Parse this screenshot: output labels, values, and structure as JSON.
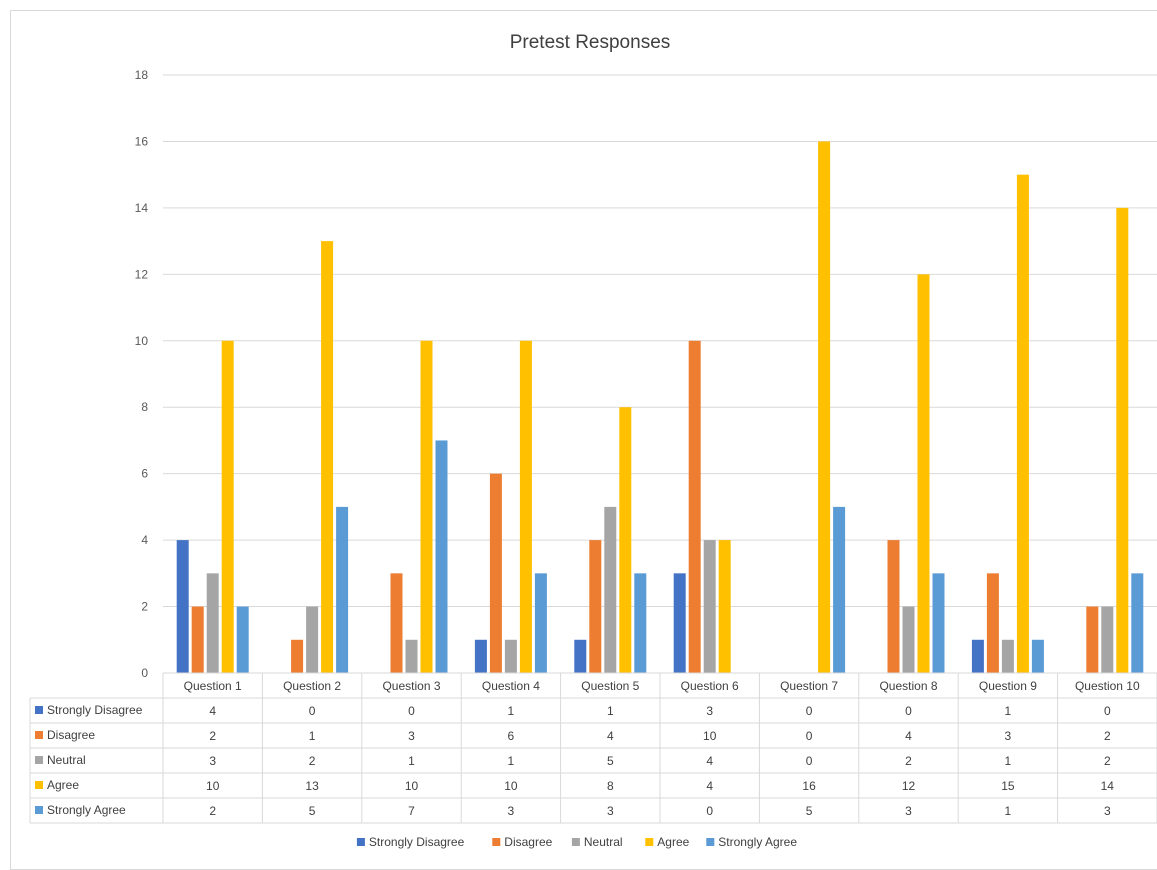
{
  "chart_data": {
    "type": "bar",
    "title": "Pretest Responses",
    "xlabel": "",
    "ylabel": "",
    "categories": [
      "Question 1",
      "Question 2",
      "Question 3",
      "Question 4",
      "Question 5",
      "Question 6",
      "Question 7",
      "Question 8",
      "Question 9",
      "Question 10"
    ],
    "ylim": [
      0,
      18
    ],
    "yticks": [
      "0",
      "2",
      "4",
      "6",
      "8",
      "10",
      "12",
      "14",
      "16",
      "18"
    ],
    "grid": true,
    "legend_position": "bottom",
    "data_table": true,
    "series": [
      {
        "name": "Strongly Disagree",
        "color": "#4472c4",
        "values": [
          4,
          0,
          0,
          1,
          1,
          3,
          0,
          0,
          1,
          0
        ]
      },
      {
        "name": "Disagree",
        "color": "#ed7d31",
        "values": [
          2,
          1,
          3,
          6,
          4,
          10,
          0,
          4,
          3,
          2
        ]
      },
      {
        "name": "Neutral",
        "color": "#a5a5a5",
        "values": [
          3,
          2,
          1,
          1,
          5,
          4,
          0,
          2,
          1,
          2
        ]
      },
      {
        "name": "Agree",
        "color": "#ffc000",
        "values": [
          10,
          13,
          10,
          10,
          8,
          4,
          16,
          12,
          15,
          14
        ]
      },
      {
        "name": "Strongly Agree",
        "color": "#5b9bd5",
        "values": [
          2,
          5,
          7,
          3,
          3,
          0,
          5,
          3,
          1,
          3
        ]
      }
    ]
  }
}
